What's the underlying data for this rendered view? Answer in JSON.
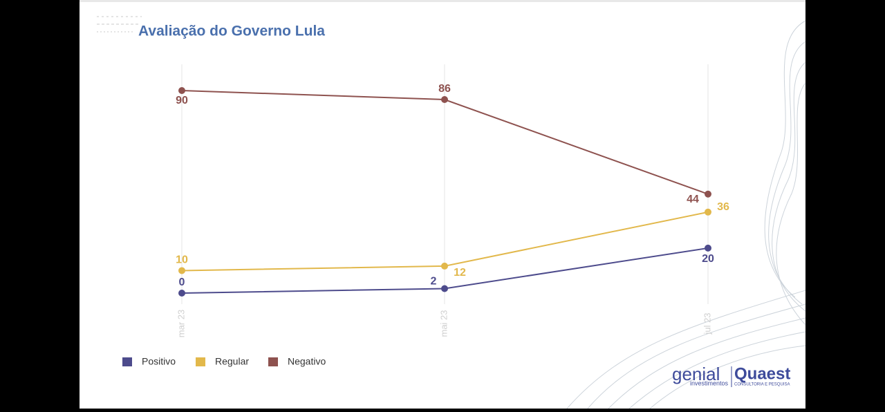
{
  "chart_data": {
    "type": "line",
    "title": "Avaliação do Governo Lula",
    "categories": [
      "mar 23",
      "mai 23",
      "jul 23"
    ],
    "series": [
      {
        "name": "Positivo",
        "color": "#4d4b8c",
        "values": [
          0,
          2,
          20
        ]
      },
      {
        "name": "Regular",
        "color": "#e2b84b",
        "values": [
          10,
          12,
          36
        ]
      },
      {
        "name": "Negativo",
        "color": "#8e524f",
        "values": [
          90,
          86,
          44
        ]
      }
    ],
    "grid": true,
    "legend": "bottom-left"
  },
  "logo": {
    "brand1": "genial",
    "brand1_sub": "investimentos",
    "brand2": "Quaest",
    "brand2_sub": "CONSULTORIA E PESQUISA"
  }
}
